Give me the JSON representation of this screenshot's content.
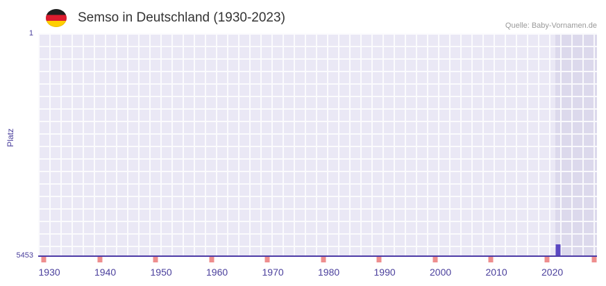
{
  "header": {
    "title": "Semso in Deutschland (1930-2023)",
    "source": "Quelle: Baby-Vornamen.de",
    "flag_icon": "germany-flag"
  },
  "chart_data": {
    "type": "bar",
    "title": "Semso in Deutschland (1930-2023)",
    "xlabel": "",
    "ylabel": "Platz",
    "y_axis": {
      "inverted": true,
      "best": 1,
      "worst": 5453,
      "tick_labels": [
        "1",
        "5453"
      ]
    },
    "x_axis": {
      "domain": [
        1928,
        2028
      ],
      "tick_years": [
        1930,
        1940,
        1950,
        1960,
        1970,
        1980,
        1990,
        2000,
        2010,
        2020
      ]
    },
    "series": [
      {
        "name": "Platz",
        "points": [
          {
            "year": 2021,
            "rank": 5180
          }
        ]
      }
    ],
    "no_rank_tick_years": [
      1929,
      1939,
      1949,
      1959,
      1969,
      1979,
      1989,
      1999,
      2009,
      2019,
      2027.5
    ],
    "highlight_region": {
      "from": 2020.5,
      "to": 2028
    },
    "legend": "none",
    "grid": "on",
    "colors": {
      "bar": "#5b48c2",
      "tick_marker": "#ee8e8e",
      "plot_bg": "#eae8f5",
      "highlight_bg": "#dcd9ec",
      "grid": "#ffffff",
      "axis_line": "#4d3aa6",
      "axis_text": "#4a3f9c",
      "title_text": "#333333",
      "source_text": "#999999"
    }
  }
}
